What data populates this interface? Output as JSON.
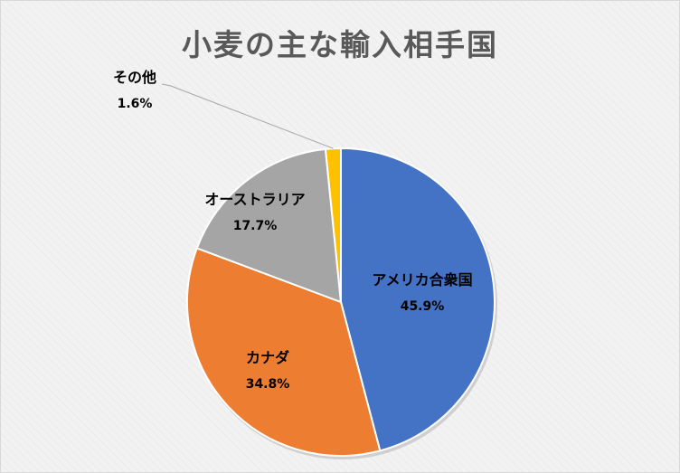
{
  "chart_data": {
    "type": "pie",
    "title": "小麦の主な輸入相手国",
    "slices": [
      {
        "label": "アメリカ合衆国",
        "value": 45.9,
        "value_label": "45.9%",
        "color": "#4472c4"
      },
      {
        "label": "カナダ",
        "value": 34.8,
        "value_label": "34.8%",
        "color": "#ed7d31"
      },
      {
        "label": "オーストラリア",
        "value": 17.7,
        "value_label": "17.7%",
        "color": "#a5a5a5"
      },
      {
        "label": "その他",
        "value": 1.6,
        "value_label": "1.6%",
        "color": "#ffc000"
      }
    ],
    "start_angle": "12 o'clock",
    "direction": "clockwise",
    "legend": "none",
    "data_labels": "category name and percent on slice; その他 outside with leader line"
  }
}
